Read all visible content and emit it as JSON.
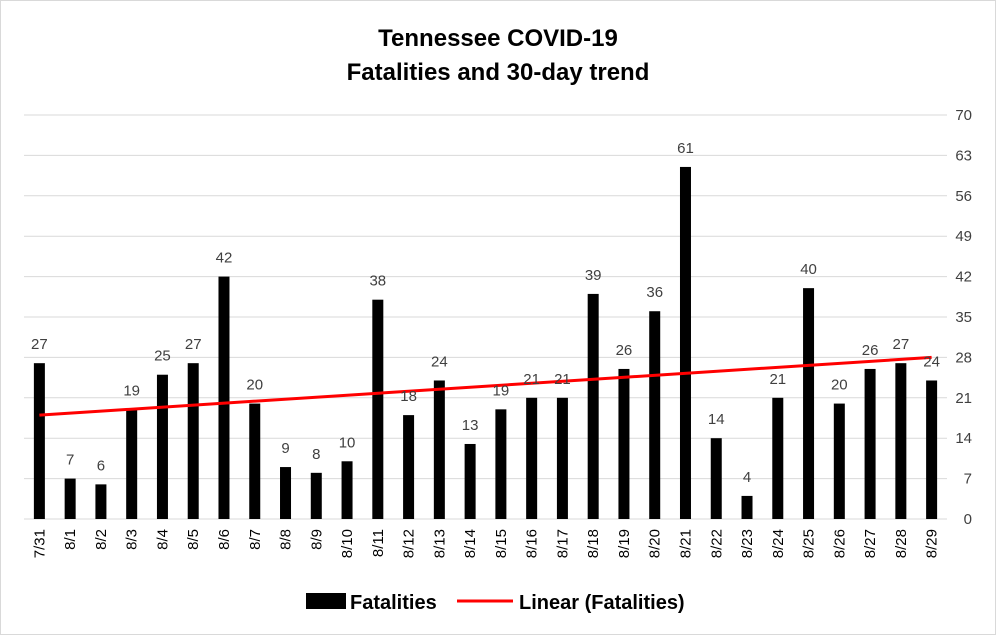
{
  "chart_data": {
    "type": "bar",
    "title_lines": [
      "Tennessee COVID-19",
      "Fatalities and 30-day trend"
    ],
    "categories": [
      "7/31",
      "8/1",
      "8/2",
      "8/3",
      "8/4",
      "8/5",
      "8/6",
      "8/7",
      "8/8",
      "8/9",
      "8/10",
      "8/11",
      "8/12",
      "8/13",
      "8/14",
      "8/15",
      "8/16",
      "8/17",
      "8/18",
      "8/19",
      "8/20",
      "8/21",
      "8/22",
      "8/23",
      "8/24",
      "8/25",
      "8/26",
      "8/27",
      "8/28",
      "8/29"
    ],
    "series": [
      {
        "name": "Fatalities",
        "type": "bar",
        "color": "#000000",
        "values": [
          27,
          7,
          6,
          19,
          25,
          27,
          42,
          20,
          9,
          8,
          10,
          38,
          18,
          24,
          13,
          19,
          21,
          21,
          39,
          26,
          36,
          61,
          14,
          4,
          21,
          40,
          20,
          26,
          27,
          24
        ]
      }
    ],
    "trendline": {
      "name": "Linear (Fatalities)",
      "type": "linear",
      "color": "#ff0000",
      "start": 18.0,
      "end": 28.0
    },
    "y_axis": {
      "position": "right",
      "ylim": [
        0,
        70
      ],
      "ticks": [
        "0",
        "7",
        "14",
        "21",
        "28",
        "35",
        "42",
        "49",
        "56",
        "63",
        "70"
      ]
    },
    "grid": true,
    "legend": {
      "placement": "bottom"
    }
  }
}
